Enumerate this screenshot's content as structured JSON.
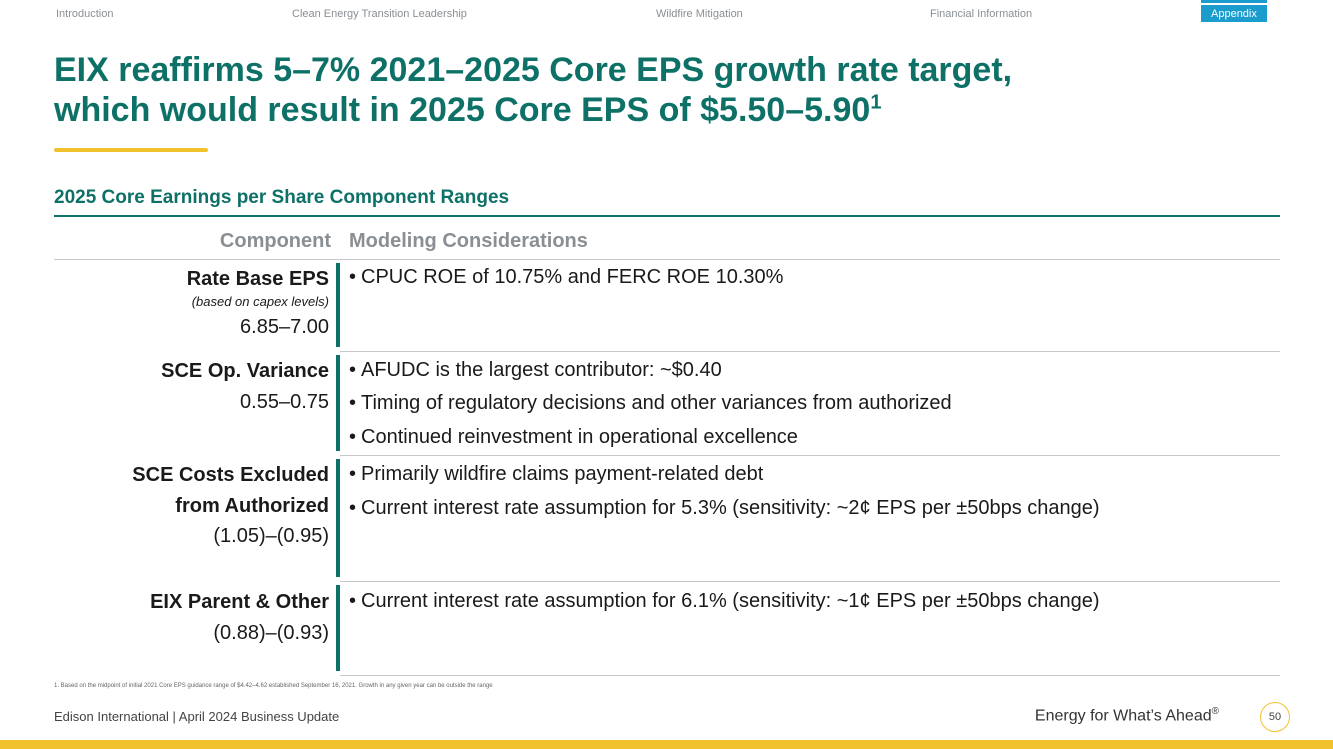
{
  "nav": {
    "items": [
      {
        "label": "Introduction"
      },
      {
        "label": "Clean Energy Transition Leadership"
      },
      {
        "label": "Wildfire Mitigation"
      },
      {
        "label": "Financial Information"
      },
      {
        "label": "Appendix"
      }
    ],
    "active": "Appendix"
  },
  "title": {
    "line1": "EIX reaffirms 5–7% 2021–2025 Core EPS growth rate target,",
    "line2": "which would result in 2025 Core EPS of $5.50–5.90",
    "footnote_ref": "1"
  },
  "section": {
    "heading": "2025 Core Earnings per Share Component Ranges"
  },
  "table": {
    "headers": {
      "component": "Component",
      "considerations": "Modeling Considerations"
    },
    "rows": [
      {
        "name": "Rate Base EPS",
        "sub": "(based on capex levels)",
        "range": "6.85–7.00",
        "bullets": [
          "CPUC ROE of 10.75% and FERC ROE 10.30%"
        ]
      },
      {
        "name": "SCE Op. Variance",
        "range": "0.55–0.75",
        "bullets": [
          "AFUDC is the largest contributor: ~$0.40",
          "Timing of regulatory decisions and other variances from authorized",
          "Continued reinvestment in operational excellence"
        ]
      },
      {
        "name_line1": "SCE Costs Excluded",
        "name_line2": "from Authorized",
        "range": "(1.05)–(0.95)",
        "bullets": [
          "Primarily wildfire claims payment-related debt",
          "Current interest rate assumption for 5.3% (sensitivity: ~2¢ EPS per ±50bps change)"
        ]
      },
      {
        "name": "EIX Parent & Other",
        "range": "(0.88)–(0.93)",
        "bullets": [
          "Current interest rate assumption for 6.1% (sensitivity: ~1¢ EPS per ±50bps change)"
        ]
      }
    ]
  },
  "footnote": "1.   Based on the midpoint of initial 2021 Core EPS guidance range of $4.42–4.62 established September 16, 2021. Growth in any given year can be outside the range",
  "footer": {
    "left": "Edison International | April 2024 Business Update",
    "tagline": "Energy for What’s Ahead",
    "tagline_mark": "®",
    "page_number": "50"
  },
  "colors": {
    "teal": "#0e7167",
    "yellow": "#f2c12e",
    "blue": "#1a9ccd",
    "gray": "#8a8f94"
  }
}
